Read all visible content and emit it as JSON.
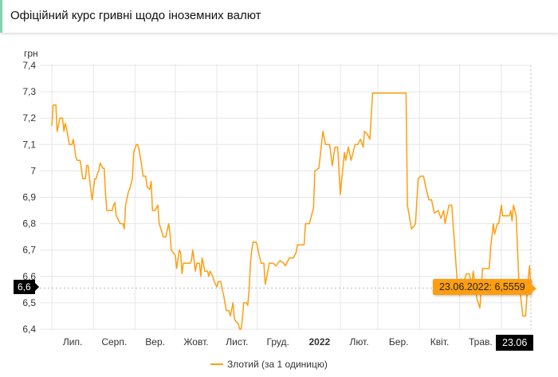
{
  "header": {
    "title": "Офіційний курс гривні щодо іноземних валют"
  },
  "chart_data": {
    "type": "line",
    "ylabel": "грн",
    "ylim": [
      6.4,
      7.4
    ],
    "yticks": [
      "7,4",
      "7,3",
      "7,2",
      "7,1",
      "7",
      "6,9",
      "6,8",
      "6,7",
      "6,6",
      "6,5",
      "6,4"
    ],
    "xlim": [
      "2021-07-01",
      "2022-06-23"
    ],
    "xticks": [
      {
        "label": "Лип.",
        "bold": false
      },
      {
        "label": "Серп.",
        "bold": false
      },
      {
        "label": "Вер.",
        "bold": false
      },
      {
        "label": "Жовт.",
        "bold": false
      },
      {
        "label": "Лист.",
        "bold": false
      },
      {
        "label": "Груд.",
        "bold": false
      },
      {
        "label": "2022",
        "bold": true
      },
      {
        "label": "Лют.",
        "bold": false
      },
      {
        "label": "Бер.",
        "bold": false
      },
      {
        "label": "Квіт.",
        "bold": false
      },
      {
        "label": "Трав.",
        "bold": false
      }
    ],
    "grid": true,
    "legend_position": "bottom",
    "color": "#ff9e0f",
    "series": [
      {
        "name": "Злотий (за 1 одиницю)",
        "points": [
          [
            "2021-07-01",
            7.17
          ],
          [
            "2021-07-02",
            7.25
          ],
          [
            "2021-07-04",
            7.25
          ],
          [
            "2021-07-05",
            7.15
          ],
          [
            "2021-07-07",
            7.2
          ],
          [
            "2021-07-09",
            7.2
          ],
          [
            "2021-07-10",
            7.15
          ],
          [
            "2021-07-11",
            7.18
          ],
          [
            "2021-07-12",
            7.16
          ],
          [
            "2021-07-14",
            7.1
          ],
          [
            "2021-07-16",
            7.1
          ],
          [
            "2021-07-17",
            7.12
          ],
          [
            "2021-07-19",
            7.05
          ],
          [
            "2021-07-20",
            7.04
          ],
          [
            "2021-07-22",
            7.04
          ],
          [
            "2021-07-23",
            7.01
          ],
          [
            "2021-07-24",
            6.97
          ],
          [
            "2021-07-26",
            6.97
          ],
          [
            "2021-07-27",
            7.02
          ],
          [
            "2021-07-28",
            7.02
          ],
          [
            "2021-07-30",
            6.93
          ],
          [
            "2021-07-31",
            6.89
          ],
          [
            "2021-08-02",
            6.97
          ],
          [
            "2021-08-03",
            6.97
          ],
          [
            "2021-08-04",
            6.99
          ],
          [
            "2021-08-05",
            7.0
          ],
          [
            "2021-08-06",
            7.03
          ],
          [
            "2021-08-08",
            7.01
          ],
          [
            "2021-08-09",
            7.01
          ],
          [
            "2021-08-10",
            6.92
          ],
          [
            "2021-08-11",
            6.85
          ],
          [
            "2021-08-13",
            6.85
          ],
          [
            "2021-08-15",
            6.85
          ],
          [
            "2021-08-16",
            6.87
          ],
          [
            "2021-08-17",
            6.88
          ],
          [
            "2021-08-18",
            6.83
          ],
          [
            "2021-08-21",
            6.8
          ],
          [
            "2021-08-23",
            6.8
          ],
          [
            "2021-08-24",
            6.78
          ],
          [
            "2021-08-25",
            6.87
          ],
          [
            "2021-08-27",
            6.92
          ],
          [
            "2021-08-28",
            6.93
          ],
          [
            "2021-08-30",
            6.97
          ],
          [
            "2021-08-31",
            7.07
          ],
          [
            "2021-09-02",
            7.1
          ],
          [
            "2021-09-03",
            7.1
          ],
          [
            "2021-09-04",
            7.08
          ],
          [
            "2021-09-06",
            7.02
          ],
          [
            "2021-09-07",
            6.98
          ],
          [
            "2021-09-09",
            6.98
          ],
          [
            "2021-09-10",
            6.94
          ],
          [
            "2021-09-12",
            6.93
          ],
          [
            "2021-09-13",
            6.96
          ],
          [
            "2021-09-14",
            6.85
          ],
          [
            "2021-09-16",
            6.85
          ],
          [
            "2021-09-18",
            6.87
          ],
          [
            "2021-09-19",
            6.8
          ],
          [
            "2021-09-21",
            6.77
          ],
          [
            "2021-09-22",
            6.75
          ],
          [
            "2021-09-24",
            6.75
          ],
          [
            "2021-09-26",
            6.8
          ],
          [
            "2021-09-27",
            6.77
          ],
          [
            "2021-09-28",
            6.7
          ],
          [
            "2021-10-01",
            6.68
          ],
          [
            "2021-10-02",
            6.63
          ],
          [
            "2021-10-04",
            6.7
          ],
          [
            "2021-10-05",
            6.69
          ],
          [
            "2021-10-06",
            6.61
          ],
          [
            "2021-10-07",
            6.65
          ],
          [
            "2021-10-12",
            6.65
          ],
          [
            "2021-10-13",
            6.66
          ],
          [
            "2021-10-14",
            6.7
          ],
          [
            "2021-10-16",
            6.62
          ],
          [
            "2021-10-17",
            6.65
          ],
          [
            "2021-10-19",
            6.65
          ],
          [
            "2021-10-20",
            6.6
          ],
          [
            "2021-10-21",
            6.67
          ],
          [
            "2021-10-23",
            6.62
          ],
          [
            "2021-10-25",
            6.62
          ],
          [
            "2021-10-26",
            6.6
          ],
          [
            "2021-10-27",
            6.62
          ],
          [
            "2021-10-29",
            6.6
          ],
          [
            "2021-10-30",
            6.58
          ],
          [
            "2021-11-01",
            6.56
          ],
          [
            "2021-11-02",
            6.58
          ],
          [
            "2021-11-04",
            6.58
          ],
          [
            "2021-11-05",
            6.55
          ],
          [
            "2021-11-06",
            6.53
          ],
          [
            "2021-11-08",
            6.47
          ],
          [
            "2021-11-10",
            6.47
          ],
          [
            "2021-11-11",
            6.45
          ],
          [
            "2021-11-13",
            6.5
          ],
          [
            "2021-11-14",
            6.44
          ],
          [
            "2021-11-15",
            6.43
          ],
          [
            "2021-11-17",
            6.42
          ],
          [
            "2021-11-18",
            6.4
          ],
          [
            "2021-11-19",
            6.4
          ],
          [
            "2021-11-20",
            6.44
          ],
          [
            "2021-11-21",
            6.5
          ],
          [
            "2021-11-23",
            6.5
          ],
          [
            "2021-11-24",
            6.49
          ],
          [
            "2021-11-25",
            6.55
          ],
          [
            "2021-11-26",
            6.65
          ],
          [
            "2021-11-27",
            6.7
          ],
          [
            "2021-11-28",
            6.73
          ],
          [
            "2021-11-30",
            6.73
          ],
          [
            "2021-12-01",
            6.72
          ],
          [
            "2021-12-02",
            6.69
          ],
          [
            "2021-12-04",
            6.65
          ],
          [
            "2021-12-06",
            6.65
          ],
          [
            "2021-12-07",
            6.57
          ],
          [
            "2021-12-09",
            6.62
          ],
          [
            "2021-12-10",
            6.65
          ],
          [
            "2021-12-13",
            6.65
          ],
          [
            "2021-12-15",
            6.64
          ],
          [
            "2021-12-18",
            6.66
          ],
          [
            "2021-12-21",
            6.65
          ],
          [
            "2021-12-22",
            6.64
          ],
          [
            "2021-12-25",
            6.67
          ],
          [
            "2021-12-28",
            6.67
          ],
          [
            "2021-12-30",
            6.69
          ],
          [
            "2021-12-31",
            6.72
          ],
          [
            "2022-01-05",
            6.72
          ],
          [
            "2022-01-06",
            6.8
          ],
          [
            "2022-01-09",
            6.8
          ],
          [
            "2022-01-12",
            6.86
          ],
          [
            "2022-01-13",
            7.0
          ],
          [
            "2022-01-16",
            7.01
          ],
          [
            "2022-01-19",
            7.15
          ],
          [
            "2022-01-21",
            7.1
          ],
          [
            "2022-01-24",
            7.1
          ],
          [
            "2022-01-26",
            7.02
          ],
          [
            "2022-01-28",
            7.09
          ],
          [
            "2022-01-30",
            7.09
          ],
          [
            "2022-02-01",
            6.91
          ],
          [
            "2022-02-04",
            7.07
          ],
          [
            "2022-02-05",
            7.04
          ],
          [
            "2022-02-07",
            7.09
          ],
          [
            "2022-02-09",
            7.04
          ],
          [
            "2022-02-12",
            7.1
          ],
          [
            "2022-02-14",
            7.1
          ],
          [
            "2022-02-16",
            7.12
          ],
          [
            "2022-02-18",
            7.09
          ],
          [
            "2022-02-19",
            7.15
          ],
          [
            "2022-02-21",
            7.14
          ],
          [
            "2022-02-23",
            7.12
          ],
          [
            "2022-02-25",
            7.295
          ],
          [
            "2022-03-22",
            7.295
          ],
          [
            "2022-03-23",
            6.87
          ],
          [
            "2022-03-26",
            6.78
          ],
          [
            "2022-03-28",
            6.79
          ],
          [
            "2022-03-29",
            6.8
          ],
          [
            "2022-03-31",
            6.97
          ],
          [
            "2022-04-02",
            6.98
          ],
          [
            "2022-04-04",
            6.98
          ],
          [
            "2022-04-06",
            6.93
          ],
          [
            "2022-04-08",
            6.89
          ],
          [
            "2022-04-10",
            6.89
          ],
          [
            "2022-04-12",
            6.84
          ],
          [
            "2022-04-15",
            6.85
          ],
          [
            "2022-04-17",
            6.82
          ],
          [
            "2022-04-19",
            6.85
          ],
          [
            "2022-04-20",
            6.8
          ],
          [
            "2022-04-23",
            6.87
          ],
          [
            "2022-04-25",
            6.87
          ],
          [
            "2022-04-27",
            6.73
          ],
          [
            "2022-04-29",
            6.59
          ],
          [
            "2022-05-01",
            6.53
          ],
          [
            "2022-05-02",
            6.59
          ],
          [
            "2022-05-04",
            6.58
          ],
          [
            "2022-05-06",
            6.61
          ],
          [
            "2022-05-08",
            6.61
          ],
          [
            "2022-05-10",
            6.57
          ],
          [
            "2022-05-11",
            6.62
          ],
          [
            "2022-05-14",
            6.51
          ],
          [
            "2022-05-16",
            6.48
          ],
          [
            "2022-05-18",
            6.63
          ],
          [
            "2022-05-23",
            6.63
          ],
          [
            "2022-05-24",
            6.71
          ],
          [
            "2022-05-26",
            6.8
          ],
          [
            "2022-05-27",
            6.76
          ],
          [
            "2022-05-29",
            6.8
          ],
          [
            "2022-05-30",
            6.8
          ],
          [
            "2022-06-01",
            6.87
          ],
          [
            "2022-06-02",
            6.83
          ],
          [
            "2022-06-07",
            6.83
          ],
          [
            "2022-06-08",
            6.85
          ],
          [
            "2022-06-09",
            6.81
          ],
          [
            "2022-06-10",
            6.87
          ],
          [
            "2022-06-12",
            6.83
          ],
          [
            "2022-06-14",
            6.59
          ],
          [
            "2022-06-17",
            6.45
          ],
          [
            "2022-06-19",
            6.45
          ],
          [
            "2022-06-21",
            6.59
          ],
          [
            "2022-06-22",
            6.64
          ],
          [
            "2022-06-23",
            6.5559
          ]
        ]
      }
    ],
    "tooltip": {
      "text": "23.06.2022: 6,5559",
      "value": 6.5559
    },
    "crosshair": {
      "y_label": "6,6",
      "x_label": "23.06"
    }
  }
}
